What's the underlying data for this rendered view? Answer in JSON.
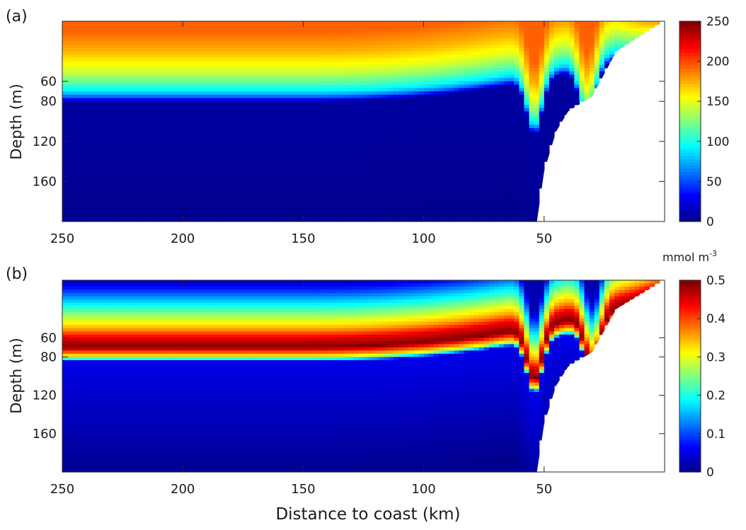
{
  "figure": {
    "xlabel": "Distance to coast (km)",
    "colorbar_unit_main": "mmol m",
    "colorbar_unit_exp": "-3"
  },
  "colormap": [
    "#00008f",
    "#0000ff",
    "#0080ff",
    "#00ffff",
    "#80ff80",
    "#ffff00",
    "#ff8000",
    "#ff0000",
    "#800000"
  ],
  "chart_data": [
    {
      "type": "heatmap",
      "panel_label": "(a)",
      "ylabel": "Depth (m)",
      "xlabel": "",
      "xlim": [
        250,
        0
      ],
      "ylim": [
        200,
        0
      ],
      "xticks": [
        250,
        200,
        150,
        100,
        50
      ],
      "xtick_labels": [
        "250",
        "200",
        "150",
        "100",
        "50"
      ],
      "yticks": [
        60,
        80,
        120,
        160
      ],
      "ytick_labels": [
        "60",
        "80",
        "120",
        "160"
      ],
      "clim": [
        0,
        250
      ],
      "cticks": [
        0,
        50,
        100,
        150,
        200,
        250
      ],
      "ctick_labels": [
        "0",
        "50",
        "100",
        "150",
        "200",
        "250"
      ],
      "variable": "nutrient",
      "profile_offshore": [
        [
          0,
          195
        ],
        [
          10,
          195
        ],
        [
          20,
          185
        ],
        [
          30,
          175
        ],
        [
          40,
          160
        ],
        [
          50,
          145
        ],
        [
          60,
          120
        ],
        [
          70,
          90
        ],
        [
          75,
          60
        ],
        [
          80,
          5
        ],
        [
          200,
          0
        ]
      ],
      "upwelling_x": [
        54,
        32
      ],
      "bathymetry": [
        [
          0,
          0
        ],
        [
          20,
          30
        ],
        [
          30,
          75
        ],
        [
          40,
          90
        ],
        [
          45,
          110
        ],
        [
          50,
          150
        ],
        [
          53,
          200
        ]
      ]
    },
    {
      "type": "heatmap",
      "panel_label": "(b)",
      "ylabel": "Depth (m)",
      "xlabel": "Distance to coast (km)",
      "xlim": [
        250,
        0
      ],
      "ylim": [
        200,
        0
      ],
      "xticks": [
        250,
        200,
        150,
        100,
        50
      ],
      "xtick_labels": [
        "250",
        "200",
        "150",
        "100",
        "50"
      ],
      "yticks": [
        60,
        80,
        120,
        160
      ],
      "ytick_labels": [
        "60",
        "80",
        "120",
        "160"
      ],
      "clim": [
        0,
        0.5
      ],
      "cticks": [
        0,
        0.1,
        0.2,
        0.3,
        0.4,
        0.5
      ],
      "ctick_labels": [
        "0",
        "0.1",
        "0.2",
        "0.3",
        "0.4",
        "0.5"
      ],
      "variable": "chlorophyll",
      "profile_offshore": [
        [
          0,
          0.02
        ],
        [
          10,
          0.08
        ],
        [
          20,
          0.15
        ],
        [
          35,
          0.25
        ],
        [
          50,
          0.35
        ],
        [
          60,
          0.45
        ],
        [
          70,
          0.5
        ],
        [
          75,
          0.4
        ],
        [
          80,
          0.3
        ],
        [
          85,
          0.05
        ],
        [
          200,
          0.0
        ]
      ],
      "upwelling_x": [
        54,
        30
      ],
      "bathymetry": [
        [
          0,
          0
        ],
        [
          20,
          30
        ],
        [
          30,
          75
        ],
        [
          40,
          90
        ],
        [
          45,
          110
        ],
        [
          50,
          150
        ],
        [
          53,
          200
        ]
      ]
    }
  ]
}
